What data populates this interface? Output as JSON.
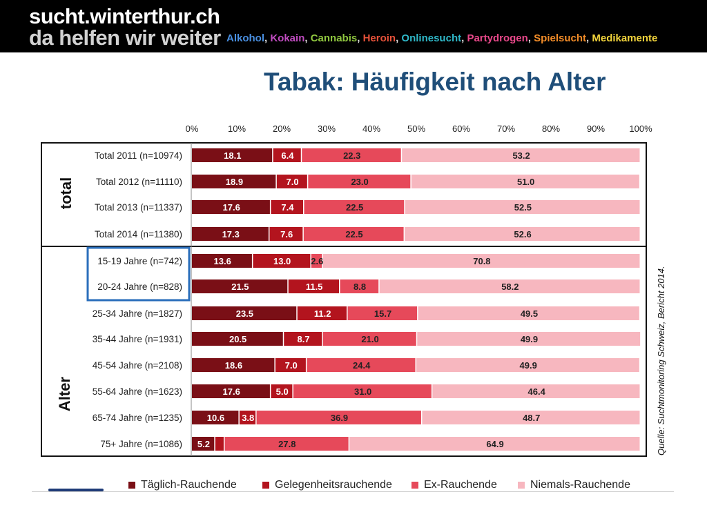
{
  "header": {
    "brand_line1": "sucht.winterthur.ch",
    "brand_line2": "da helfen wir weiter",
    "topics": [
      {
        "label": "Alkohol",
        "color": "#4a90e2"
      },
      {
        "label": "Kokain",
        "color": "#c04cc0"
      },
      {
        "label": "Cannabis",
        "color": "#8fc63f"
      },
      {
        "label": "Heroin",
        "color": "#e8523a"
      },
      {
        "label": "Onlinesucht",
        "color": "#2fb8c8"
      },
      {
        "label": "Partydrogen",
        "color": "#e8488a"
      },
      {
        "label": "Spielsucht",
        "color": "#f28c28"
      },
      {
        "label": "Medikamente",
        "color": "#f2d43c"
      }
    ],
    "separator": ","
  },
  "slide_title": "Tabak: Häufigkeit nach Alter",
  "source_note": "Quelle: Suchtmonitoring Schweiz, Bericht 2014.",
  "group_labels": {
    "total": "total",
    "age": "Alter"
  },
  "chart_data": {
    "type": "bar",
    "orientation": "horizontal",
    "stacked": true,
    "percent_axis": true,
    "xlim": [
      0,
      100
    ],
    "x_ticks": [
      "0%",
      "10%",
      "20%",
      "30%",
      "40%",
      "50%",
      "60%",
      "70%",
      "80%",
      "90%",
      "100%"
    ],
    "categories": [
      "Total 2011 (n=10974)",
      "Total 2012 (n=11110)",
      "Total 2013 (n=11337)",
      "Total 2014 (n=11380)",
      "15-19 Jahre (n=742)",
      "20-24 Jahre (n=828)",
      "25-34 Jahre (n=1827)",
      "35-44 Jahre (n=1931)",
      "45-54 Jahre (n=2108)",
      "55-64 Jahre (n=1623)",
      "65-74 Jahre (n=1235)",
      "75+ Jahre (n=1086)"
    ],
    "series": [
      {
        "name": "Täglich-Rauchende",
        "color": "#7a0f16",
        "values": [
          18.1,
          18.9,
          17.6,
          17.3,
          13.6,
          21.5,
          23.5,
          20.5,
          18.6,
          17.6,
          10.6,
          5.2
        ],
        "labels": [
          "18.1",
          "18.9",
          "17.6",
          "17.3",
          "13.6",
          "21.5",
          "23.5",
          "20.5",
          "18.6",
          "17.6",
          "10.6",
          "5.2"
        ]
      },
      {
        "name": "Gelegenheitsrauchende",
        "color": "#b3141e",
        "values": [
          6.4,
          7.0,
          7.4,
          7.6,
          13.0,
          11.5,
          11.2,
          8.7,
          7.0,
          5.0,
          3.8,
          2.1
        ],
        "labels": [
          "6.4",
          "7.0",
          "7.4",
          "7.6",
          "13.0",
          "11.5",
          "11.2",
          "8.7",
          "7.0",
          "5.0",
          "3.8",
          ""
        ]
      },
      {
        "name": "Ex-Rauchende",
        "color": "#e6495a",
        "values": [
          22.3,
          23.0,
          22.5,
          22.5,
          2.6,
          8.8,
          15.7,
          21.0,
          24.4,
          31.0,
          36.9,
          27.8
        ],
        "labels": [
          "22.3",
          "23.0",
          "22.5",
          "22.5",
          "2.6",
          "8.8",
          "15.7",
          "21.0",
          "24.4",
          "31.0",
          "36.9",
          "27.8"
        ]
      },
      {
        "name": "Niemals-Rauchende",
        "color": "#f7b7bf",
        "values": [
          53.2,
          51.0,
          52.5,
          52.6,
          70.8,
          58.2,
          49.5,
          49.9,
          49.9,
          46.4,
          48.7,
          64.9
        ],
        "labels": [
          "53.2",
          "51.0",
          "52.5",
          "52.6",
          "70.8",
          "58.2",
          "49.5",
          "49.9",
          "49.9",
          "46.4",
          "48.7",
          "64.9"
        ]
      }
    ],
    "legend_position": "bottom",
    "highlighted_categories": [
      "15-19 Jahre (n=742)",
      "20-24 Jahre (n=828)"
    ],
    "highlight_color": "#2a6ebb"
  }
}
